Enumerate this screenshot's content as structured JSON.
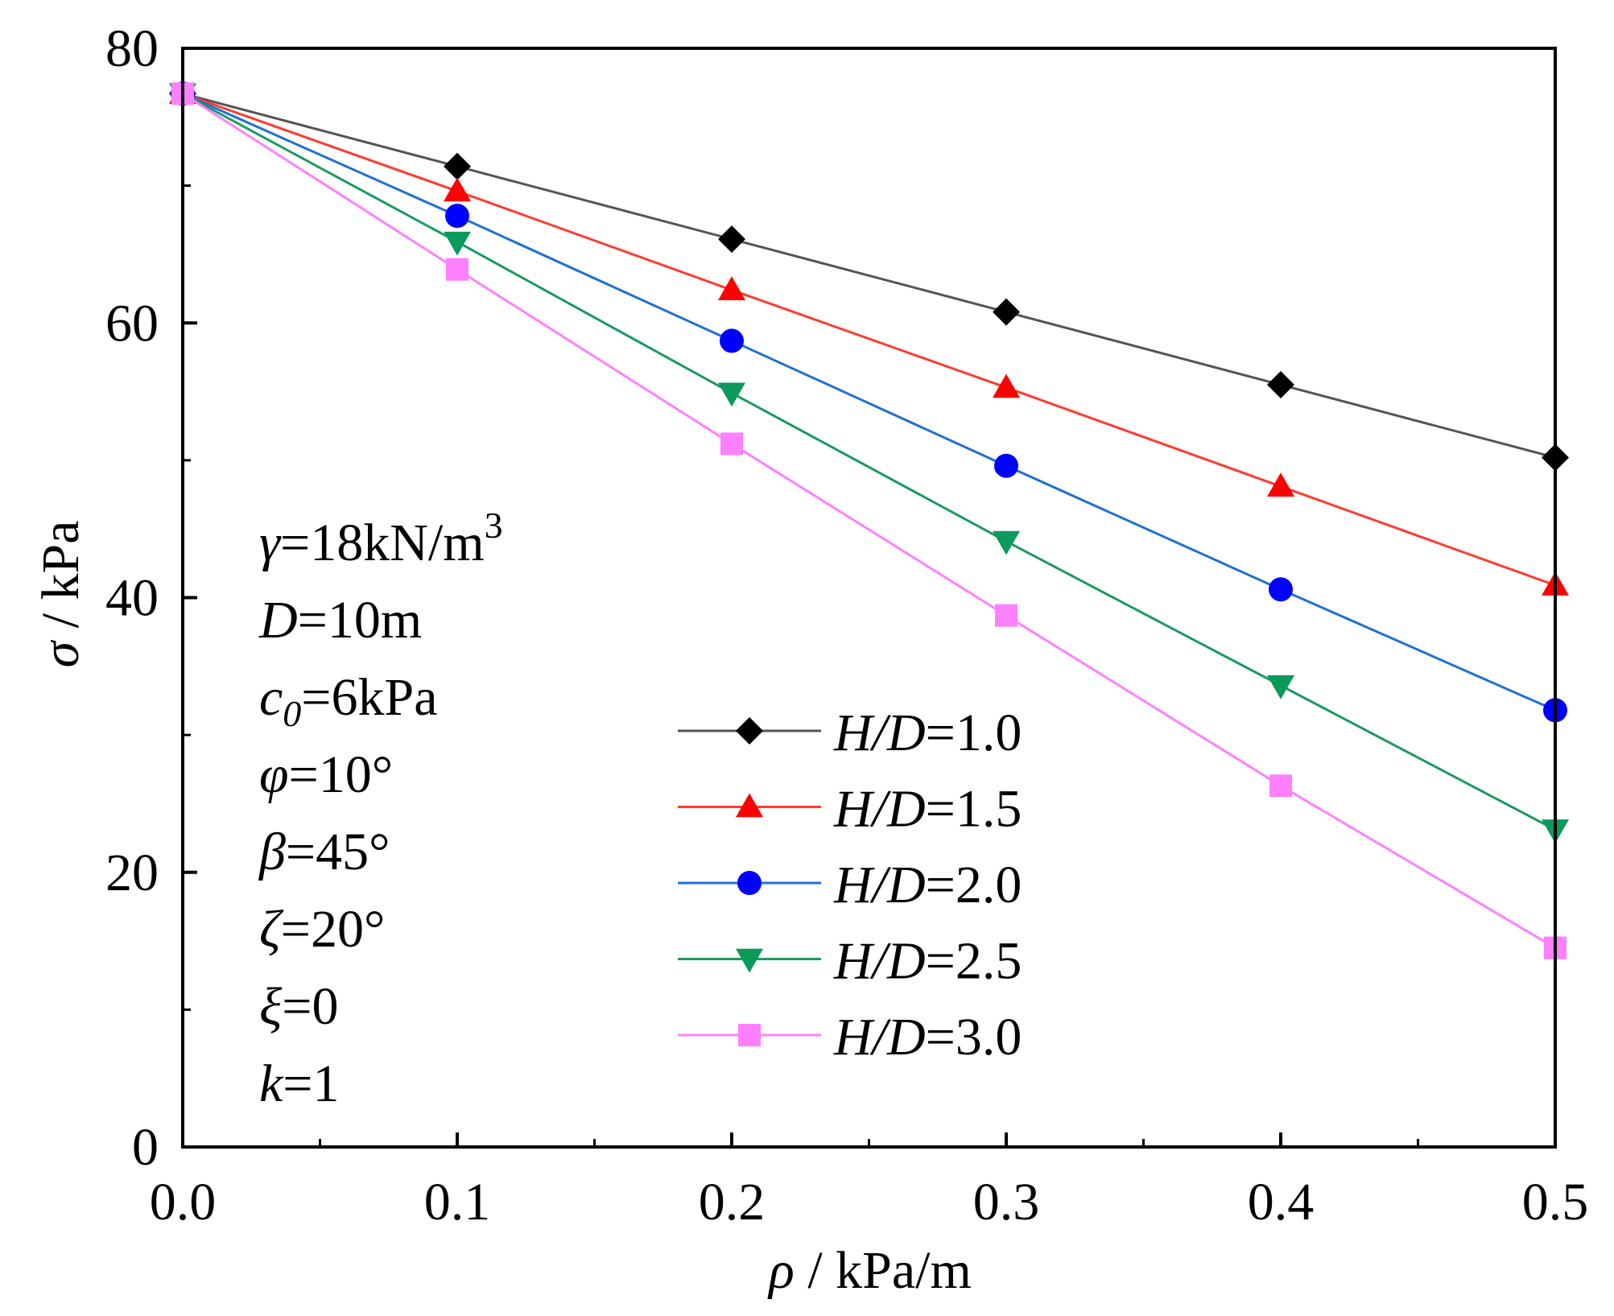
{
  "chart_data": {
    "type": "line",
    "xlabel": {
      "symbol": "ρ",
      "unit": " / kPa/m"
    },
    "ylabel": {
      "symbol": "σ",
      "unit": " / kPa"
    },
    "xlim": [
      0,
      0.5
    ],
    "ylim": [
      0,
      80
    ],
    "x_ticks": [
      "0.0",
      "0.1",
      "0.2",
      "0.3",
      "0.4",
      "0.5"
    ],
    "x_tick_values": [
      0,
      0.1,
      0.2,
      0.3,
      0.4,
      0.5
    ],
    "y_ticks": [
      "0",
      "20",
      "40",
      "60",
      "80"
    ],
    "y_tick_values": [
      0,
      20,
      40,
      60,
      80
    ],
    "grid": false,
    "legend_position": "center-right",
    "x": [
      0,
      0.1,
      0.2,
      0.3,
      0.4,
      0.5
    ],
    "series": [
      {
        "name_sym": "H/D",
        "name_val": "=1.0",
        "marker": "diamond",
        "color": "#555555",
        "marker_color": "#000000",
        "values": [
          76.7,
          71.4,
          66.1,
          60.8,
          55.5,
          50.2
        ]
      },
      {
        "name_sym": "H/D",
        "name_val": "=1.5",
        "marker": "triangle-up",
        "color": "#ff3b30",
        "marker_color": "#ff0000",
        "values": [
          76.7,
          69.6,
          62.4,
          55.3,
          48.1,
          40.9
        ]
      },
      {
        "name_sym": "H/D",
        "name_val": "=2.0",
        "marker": "circle",
        "color": "#1f6fd6",
        "marker_color": "#0000ff",
        "values": [
          76.7,
          67.8,
          58.7,
          49.6,
          40.6,
          31.8
        ]
      },
      {
        "name_sym": "H/D",
        "name_val": "=2.5",
        "marker": "triangle-down",
        "color": "#1a9a60",
        "marker_color": "#0a9a5a",
        "values": [
          76.7,
          65.9,
          54.9,
          44.1,
          33.6,
          23.1
        ]
      },
      {
        "name_sym": "H/D",
        "name_val": "=3.0",
        "marker": "square",
        "color": "#ff80ff",
        "marker_color": "#ff80ff",
        "values": [
          76.7,
          63.9,
          51.2,
          38.7,
          26.3,
          14.5
        ]
      }
    ],
    "parameters": [
      {
        "sym": "γ",
        "text": "=18kN/m",
        "sup": "3"
      },
      {
        "sym": "D",
        "text": "=10m"
      },
      {
        "sym": "c",
        "sub": "0",
        "text": "=6kPa"
      },
      {
        "sym": "φ",
        "text": "=10°"
      },
      {
        "sym": "β",
        "text": "=45°"
      },
      {
        "sym": "ζ",
        "text": "=20°"
      },
      {
        "sym": "ξ",
        "text": "=0"
      },
      {
        "sym": "k",
        "text": "=1"
      }
    ]
  }
}
